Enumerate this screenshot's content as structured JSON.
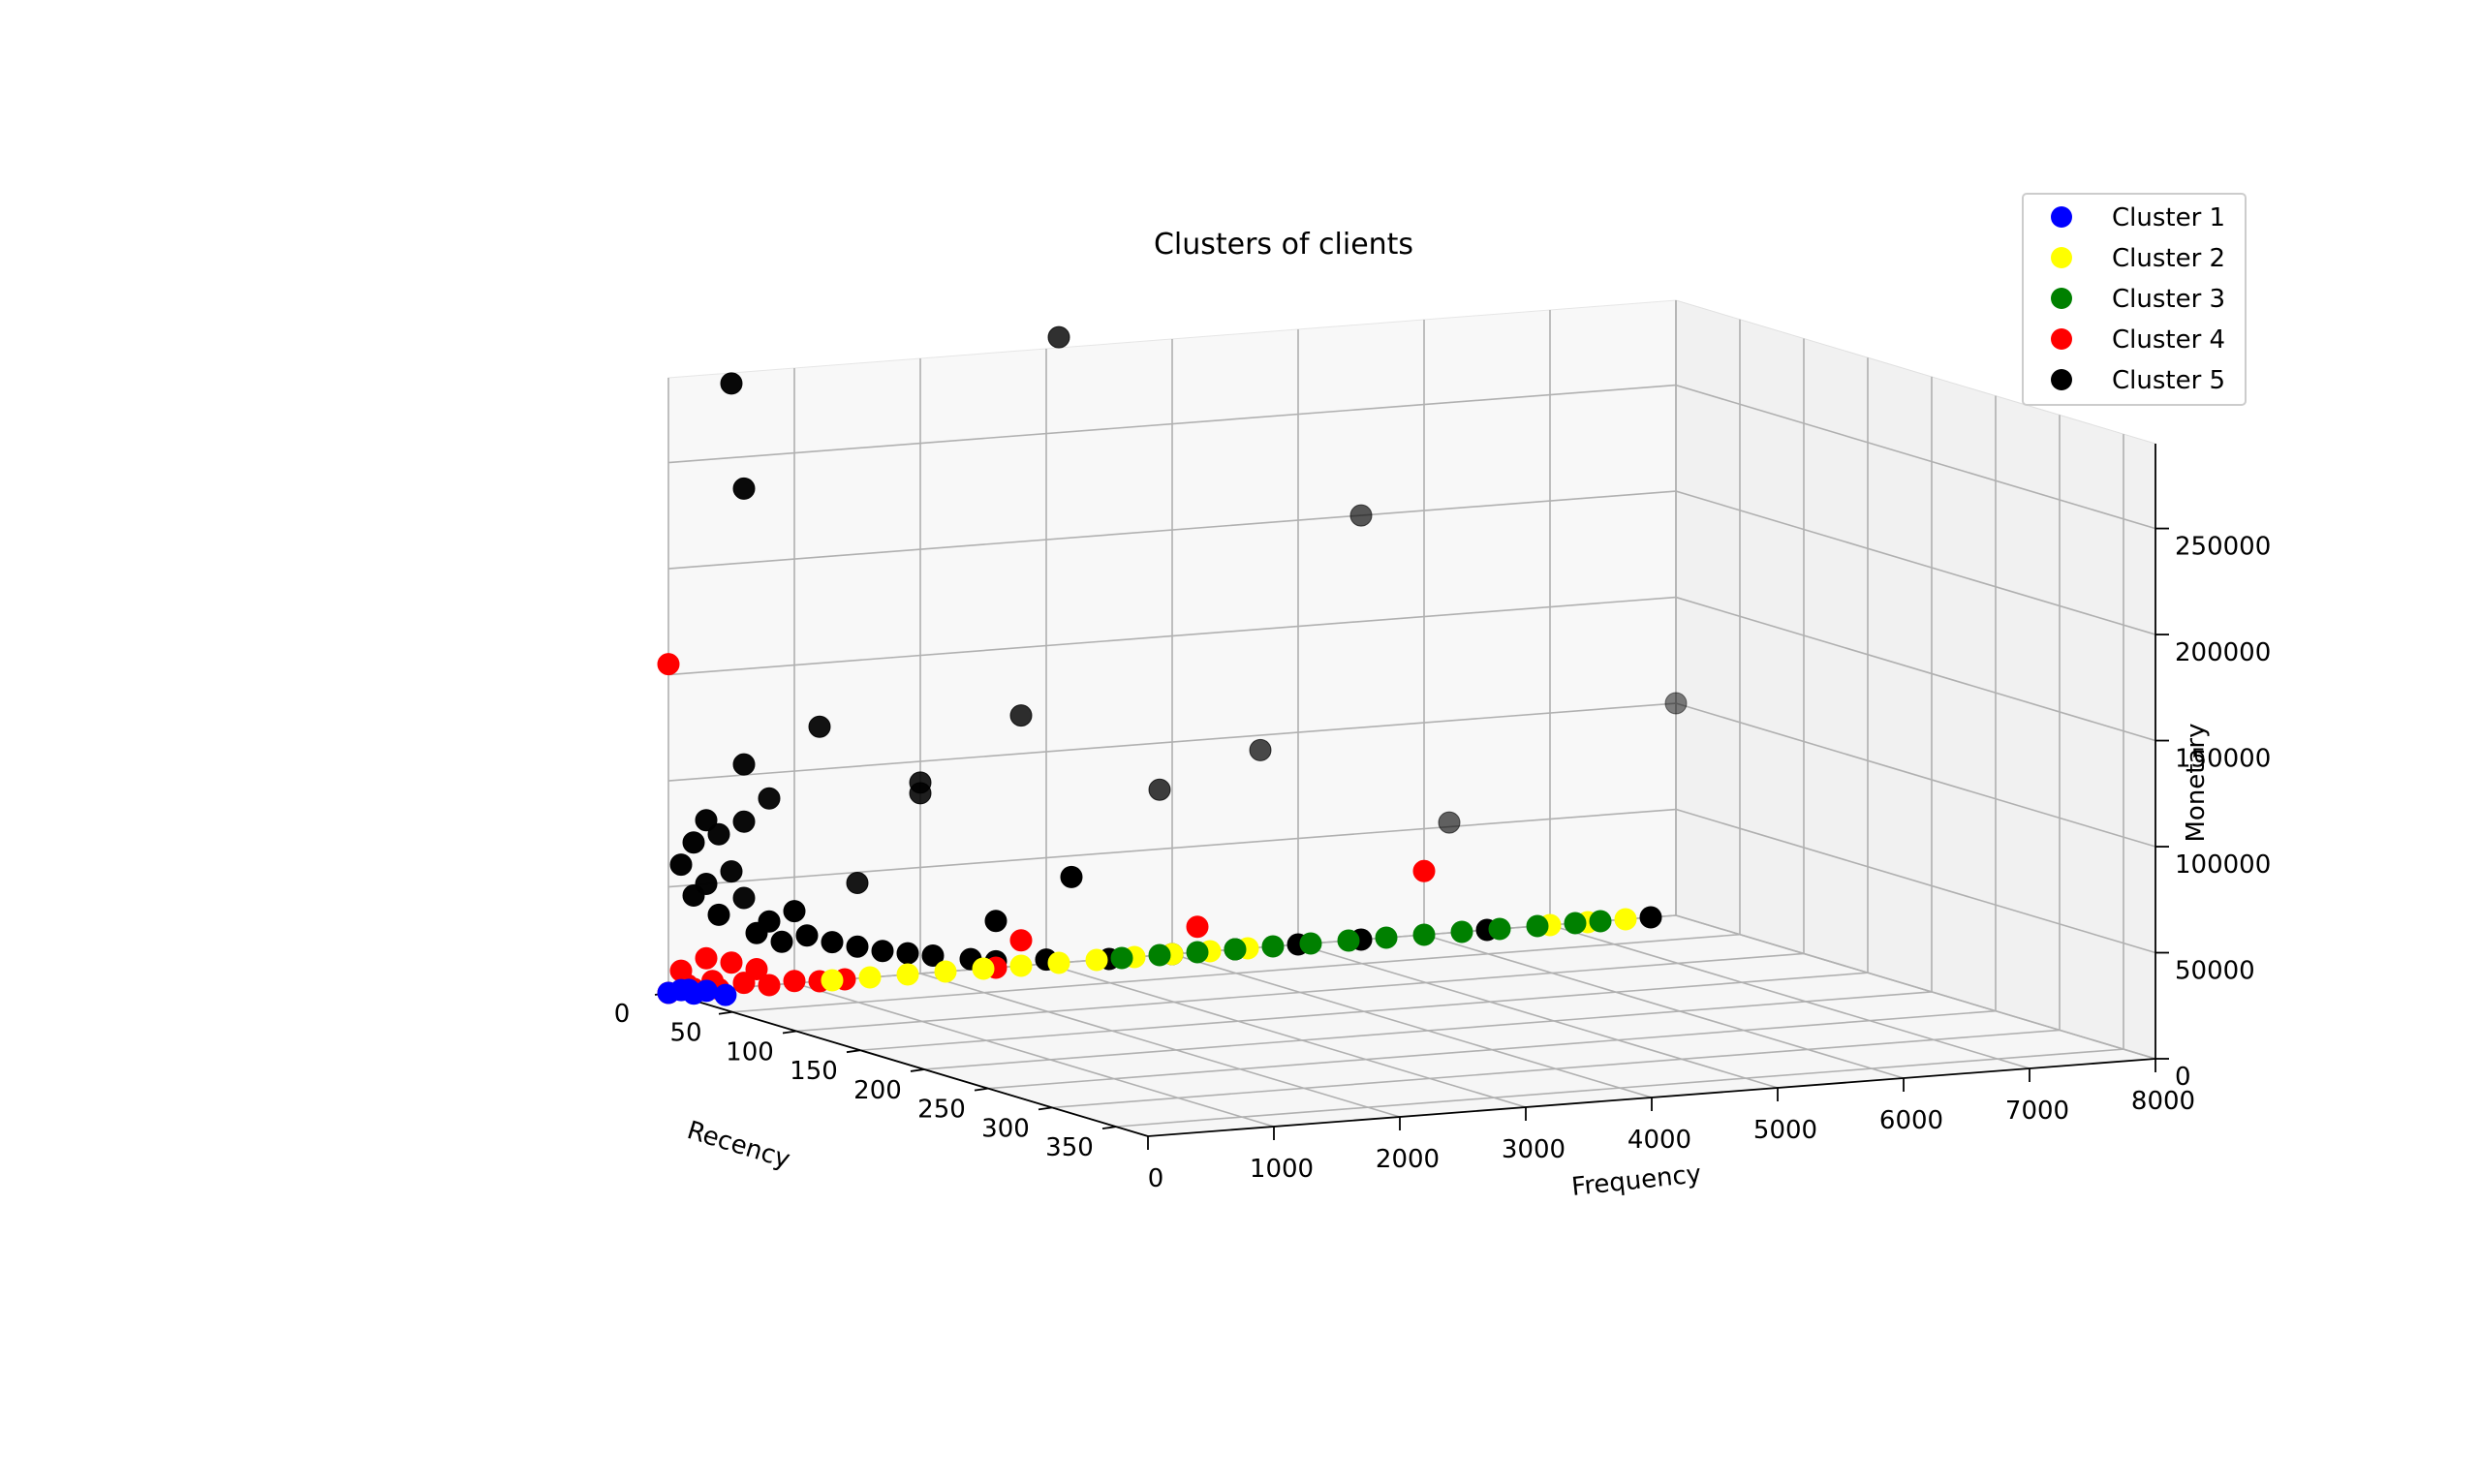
{
  "chart_data": {
    "type": "scatter",
    "projection": "3d",
    "title": "Clusters of clients",
    "xlabel": "Recency",
    "ylabel": "Frequency",
    "zlabel": "Monetary",
    "xlim": [
      0,
      375
    ],
    "ylim": [
      0,
      8000
    ],
    "zlim": [
      0,
      290000
    ],
    "x_ticks": [
      0,
      50,
      100,
      150,
      200,
      250,
      300,
      350
    ],
    "y_ticks": [
      0,
      1000,
      2000,
      3000,
      4000,
      5000,
      6000,
      7000,
      8000
    ],
    "z_ticks": [
      0,
      50000,
      100000,
      150000,
      200000,
      250000
    ],
    "legend_position": "top-right",
    "grid": true,
    "series": [
      {
        "name": "Cluster 1",
        "color": "#0000ff",
        "points": [
          [
            0,
            0,
            0
          ],
          [
            5,
            50,
            2000
          ],
          [
            10,
            100,
            1000
          ],
          [
            15,
            150,
            3000
          ],
          [
            20,
            250,
            1500
          ],
          [
            8,
            80,
            2500
          ]
        ]
      },
      {
        "name": "Cluster 2",
        "color": "#ffff00",
        "points": [
          [
            0,
            1300,
            0
          ],
          [
            0,
            1600,
            0
          ],
          [
            0,
            1900,
            0
          ],
          [
            0,
            2200,
            0
          ],
          [
            0,
            2500,
            0
          ],
          [
            0,
            2800,
            0
          ],
          [
            0,
            3100,
            0
          ],
          [
            0,
            3400,
            0
          ],
          [
            0,
            3700,
            0
          ],
          [
            0,
            4000,
            0
          ],
          [
            0,
            4300,
            0
          ],
          [
            0,
            4600,
            0
          ],
          [
            0,
            7000,
            0
          ],
          [
            0,
            7300,
            0
          ],
          [
            0,
            7600,
            0
          ]
        ]
      },
      {
        "name": "Cluster 3",
        "color": "#008000",
        "points": [
          [
            0,
            3600,
            0
          ],
          [
            0,
            3900,
            0
          ],
          [
            0,
            4200,
            0
          ],
          [
            0,
            4500,
            0
          ],
          [
            0,
            4800,
            0
          ],
          [
            0,
            5100,
            0
          ],
          [
            0,
            5400,
            0
          ],
          [
            0,
            5700,
            0
          ],
          [
            0,
            6000,
            0
          ],
          [
            0,
            6300,
            0
          ],
          [
            0,
            6600,
            0
          ],
          [
            0,
            6900,
            0
          ],
          [
            0,
            7200,
            0
          ],
          [
            0,
            7400,
            0
          ]
        ]
      },
      {
        "name": "Cluster 4",
        "color": "#ff0000",
        "points": [
          [
            0,
            0,
            0
          ],
          [
            0,
            200,
            1000
          ],
          [
            0,
            400,
            0
          ],
          [
            0,
            600,
            2000
          ],
          [
            0,
            800,
            0
          ],
          [
            0,
            1000,
            1000
          ],
          [
            0,
            1200,
            0
          ],
          [
            0,
            1400,
            0
          ],
          [
            0,
            150,
            3000
          ],
          [
            0,
            350,
            4000
          ],
          [
            0,
            100,
            10000
          ],
          [
            0,
            300,
            15000
          ],
          [
            0,
            500,
            12000
          ],
          [
            0,
            700,
            8000
          ],
          [
            0,
            2600,
            0
          ],
          [
            0,
            6000,
            30000
          ],
          [
            0,
            2800,
            12000
          ],
          [
            0,
            4200,
            12000
          ],
          [
            0,
            0,
            155000
          ]
        ]
      },
      {
        "name": "Cluster 5",
        "color": "#000000",
        "points": [
          [
            0,
            200,
            45000
          ],
          [
            0,
            400,
            35000
          ],
          [
            0,
            600,
            42000
          ],
          [
            0,
            800,
            30000
          ],
          [
            0,
            1000,
            34000
          ],
          [
            0,
            300,
            50000
          ],
          [
            0,
            500,
            55000
          ],
          [
            0,
            100,
            60000
          ],
          [
            0,
            700,
            25000
          ],
          [
            0,
            900,
            20000
          ],
          [
            0,
            1100,
            22000
          ],
          [
            0,
            1300,
            18000
          ],
          [
            0,
            1500,
            15000
          ],
          [
            0,
            1700,
            12000
          ],
          [
            0,
            1900,
            10000
          ],
          [
            0,
            2100,
            8000
          ],
          [
            0,
            2400,
            5000
          ],
          [
            0,
            2600,
            3000
          ],
          [
            0,
            3000,
            2000
          ],
          [
            0,
            3500,
            0
          ],
          [
            0,
            4000,
            0
          ],
          [
            0,
            4500,
            0
          ],
          [
            0,
            5000,
            0
          ],
          [
            0,
            5500,
            0
          ],
          [
            0,
            6500,
            0
          ],
          [
            0,
            7800,
            0
          ],
          [
            0,
            200,
            70000
          ],
          [
            0,
            400,
            73000
          ],
          [
            0,
            600,
            78000
          ],
          [
            0,
            800,
            88000
          ],
          [
            0,
            300,
            80000
          ],
          [
            0,
            600,
            105000
          ],
          [
            0,
            1200,
            120000
          ],
          [
            0,
            2800,
            118000
          ],
          [
            0,
            2000,
            90000
          ],
          [
            0,
            3900,
            78000
          ],
          [
            0,
            3200,
            40000
          ],
          [
            0,
            2600,
            22000
          ],
          [
            0,
            6200,
            52000
          ],
          [
            0,
            4700,
            93000
          ],
          [
            0,
            8000,
            100000
          ],
          [
            0,
            5500,
            200000
          ],
          [
            0,
            500,
            285000
          ],
          [
            0,
            3100,
            295000
          ],
          [
            0,
            600,
            235000
          ],
          [
            0,
            2000,
            85000
          ],
          [
            0,
            1500,
            45000
          ]
        ]
      }
    ]
  }
}
